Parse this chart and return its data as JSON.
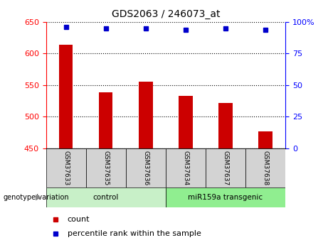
{
  "title": "GDS2063 / 246073_at",
  "samples": [
    "GSM37633",
    "GSM37635",
    "GSM37636",
    "GSM37634",
    "GSM37637",
    "GSM37638"
  ],
  "count_values": [
    614,
    539,
    555,
    533,
    522,
    477
  ],
  "percentile_values": [
    96,
    95,
    95,
    94,
    95,
    94
  ],
  "groups": [
    {
      "label": "control",
      "indices": [
        0,
        1,
        2
      ],
      "color": "#c8f0c8"
    },
    {
      "label": "miR159a transgenic",
      "indices": [
        3,
        4,
        5
      ],
      "color": "#90ee90"
    }
  ],
  "ylim_left": [
    450,
    650
  ],
  "ylim_right": [
    0,
    100
  ],
  "yticks_left": [
    450,
    500,
    550,
    600,
    650
  ],
  "yticks_right": [
    0,
    25,
    50,
    75,
    100
  ],
  "bar_color": "#cc0000",
  "dot_color": "#0000cc",
  "legend_count_label": "count",
  "legend_pct_label": "percentile rank within the sample",
  "xlabel_label": "genotype/variation",
  "group_label_color": "#aaaaaa",
  "sample_box_color": "#d3d3d3"
}
